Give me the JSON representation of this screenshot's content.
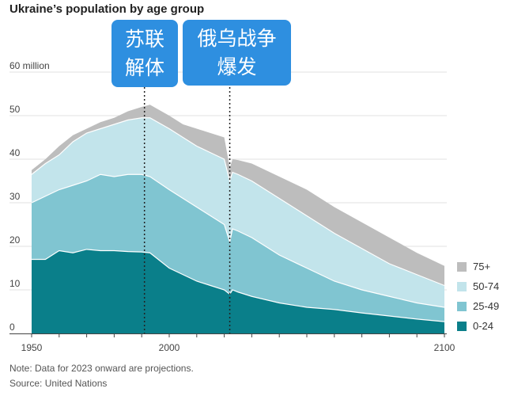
{
  "chart_data": {
    "type": "area",
    "stacked": true,
    "title": "Ukraine’s population by age group",
    "ylabel": "",
    "y_unit_label": "60 million",
    "ylim": [
      0,
      60
    ],
    "xlim": [
      1950,
      2100
    ],
    "yticks": [
      "0",
      "10",
      "20",
      "30",
      "40",
      "50"
    ],
    "xticks": [
      "1950",
      "2000",
      "2100"
    ],
    "grid": true,
    "legend_position": "right",
    "x": [
      1950,
      1955,
      1960,
      1965,
      1970,
      1975,
      1980,
      1985,
      1990,
      1993,
      2000,
      2005,
      2010,
      2015,
      2020,
      2022,
      2023,
      2025,
      2030,
      2040,
      2050,
      2060,
      2070,
      2080,
      2090,
      2100
    ],
    "series": [
      {
        "name": "0-24",
        "color": "#0a7f8a",
        "values": [
          17,
          17,
          19,
          18.5,
          19.3,
          19,
          19,
          18.8,
          18.7,
          18.5,
          15,
          13.5,
          12,
          11,
          10,
          9,
          10,
          9.5,
          8.5,
          7,
          6,
          5.5,
          4.7,
          4,
          3.3,
          2.7
        ]
      },
      {
        "name": "25-49",
        "color": "#80c5d1",
        "values": [
          13,
          14.5,
          14,
          15.5,
          15.7,
          17.5,
          17,
          17.7,
          17.8,
          17.5,
          18,
          17.5,
          17,
          16,
          15,
          12,
          14,
          14,
          13.5,
          11,
          9,
          6.5,
          5.3,
          4.5,
          3.7,
          3.3
        ]
      },
      {
        "name": "50-74",
        "color": "#c2e4eb",
        "values": [
          6.5,
          7.5,
          8,
          10,
          11,
          10.5,
          12,
          12.5,
          13,
          13.5,
          14,
          14,
          14,
          14.5,
          15,
          14,
          13,
          13,
          13,
          13,
          12,
          11,
          9.5,
          7.5,
          6.5,
          5
        ]
      },
      {
        "name": "75+",
        "color": "#bdbdbd",
        "values": [
          1,
          1,
          2,
          1.5,
          1,
          1.5,
          1.5,
          2,
          2.5,
          3,
          3,
          3,
          4,
          4.5,
          5,
          3,
          3,
          3.3,
          4,
          5,
          6,
          6,
          6,
          6,
          5,
          4.5
        ]
      }
    ],
    "annotations": [
      {
        "year": 1991,
        "lines": [
          "苏联",
          "解体"
        ]
      },
      {
        "year": 2022,
        "lines": [
          "俄乌战争",
          "爆发"
        ]
      }
    ],
    "note": "Note: Data for 2023 onward are projections.",
    "source": "Source: United Nations"
  },
  "colors": {
    "callout": "#2e8fe0"
  }
}
